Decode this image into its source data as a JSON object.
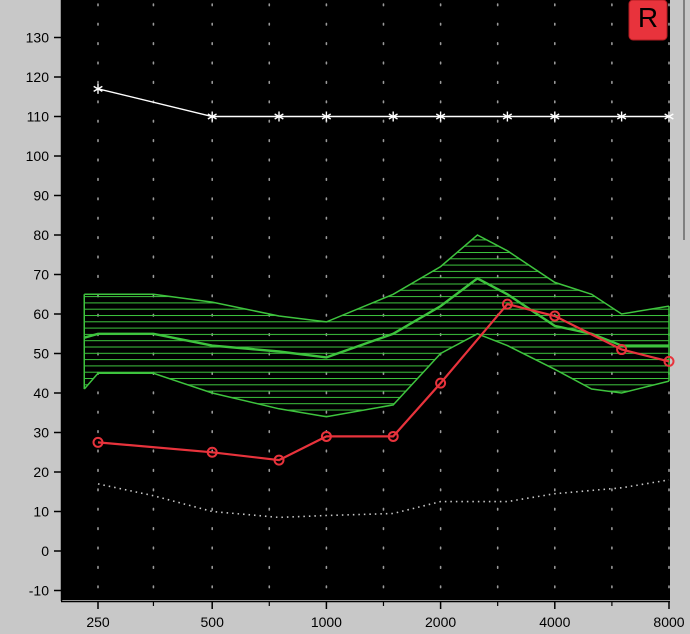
{
  "chart_data": {
    "type": "line",
    "x_scale": "log",
    "x_ticks": [
      250,
      500,
      1000,
      2000,
      4000,
      8000
    ],
    "x_tick_labels": [
      "250",
      "500",
      "1000",
      "2000",
      "4000",
      "8000"
    ],
    "x_minor_ticks": [
      350,
      707,
      1414,
      2828,
      5657
    ],
    "y_ticks": [
      -10,
      0,
      10,
      20,
      30,
      40,
      50,
      60,
      70,
      80,
      90,
      100,
      110,
      120,
      130
    ],
    "ylim": [
      -12,
      140
    ],
    "grid": "dotted",
    "ear_badge": {
      "label": "R",
      "color": "#e8333c"
    },
    "series": [
      {
        "color": "#ffffff",
        "marker": "asterisk",
        "x": [
          250,
          500,
          750,
          1000,
          1500,
          2000,
          3000,
          4000,
          6000,
          8000
        ],
        "y": [
          117,
          110,
          110,
          110,
          110,
          110,
          110,
          110,
          110,
          110
        ]
      },
      {
        "color": "#e8333c",
        "marker": "circle",
        "x": [
          250,
          500,
          750,
          1000,
          1500,
          2000,
          3000,
          4000,
          6000,
          8000
        ],
        "y": [
          27.5,
          25,
          23,
          29,
          29,
          42.5,
          62.5,
          59.5,
          51,
          48
        ]
      },
      {
        "color": "#c8c8c8",
        "style": "dotted",
        "x": [
          250,
          350,
          500,
          750,
          1000,
          1500,
          2000,
          3000,
          4000,
          6000,
          8000
        ],
        "y": [
          17,
          14,
          10,
          8.5,
          9,
          9.5,
          12.5,
          12.5,
          14.5,
          16,
          18
        ]
      }
    ],
    "target_band": {
      "color": "#3ec43e",
      "x": [
        230,
        250,
        350,
        500,
        750,
        1000,
        1500,
        2000,
        2500,
        3000,
        4000,
        5000,
        6000,
        8000
      ],
      "upper": [
        65,
        65,
        65,
        63,
        59.5,
        58,
        65,
        72,
        80,
        76,
        68,
        65,
        60,
        62
      ],
      "mid": [
        54,
        55,
        55,
        52,
        50.5,
        49,
        55,
        62,
        69,
        65,
        57,
        55,
        52,
        52
      ],
      "lower": [
        41,
        45,
        45,
        40,
        36,
        34,
        37,
        50,
        55,
        52,
        46,
        41,
        40,
        43
      ]
    }
  }
}
